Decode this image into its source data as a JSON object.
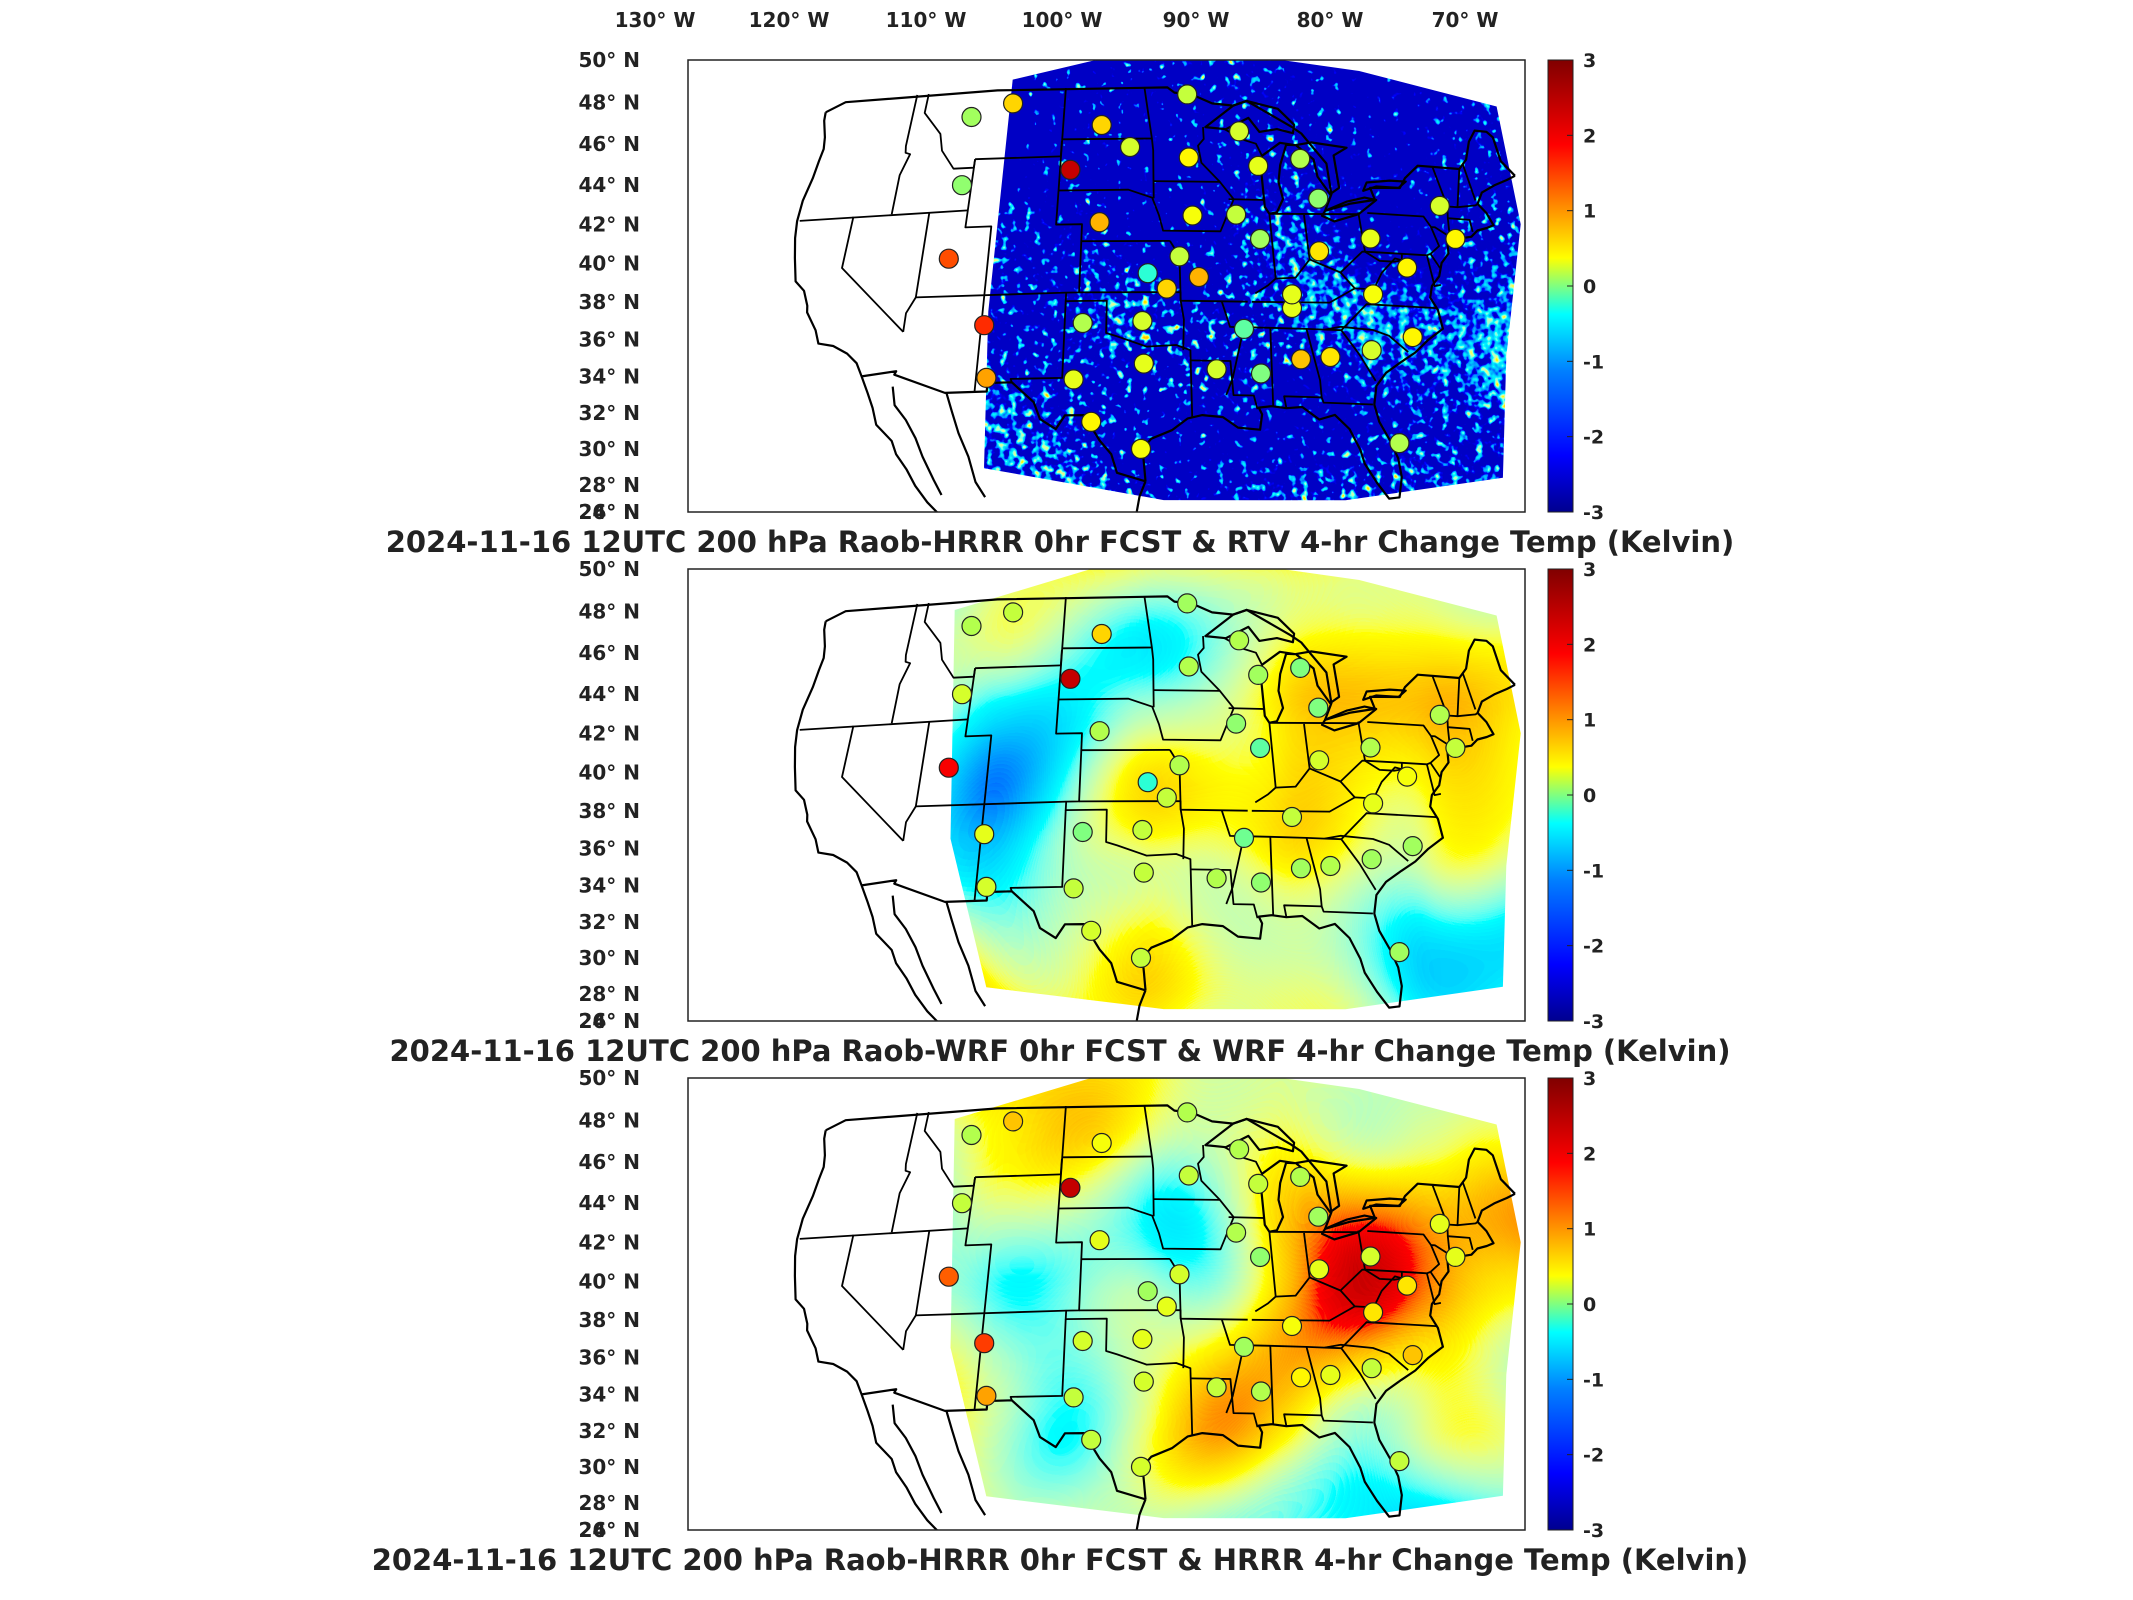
{
  "lon_ticks": [
    "130° W",
    "120° W",
    "110° W",
    "100° W",
    "90° W",
    "80° W",
    "70° W"
  ],
  "lat_ticks": [
    "50° N",
    "48° N",
    "46° N",
    "44° N",
    "42° N",
    "40° N",
    "38° N",
    "36° N",
    "34° N",
    "32° N",
    "30° N",
    "28° N",
    "26° N",
    "24° N"
  ],
  "colorbar": {
    "ticks": [
      "3",
      "2",
      "1",
      "0",
      "-1",
      "-2",
      "-3"
    ],
    "colormap": [
      "#00008f",
      "#0000ff",
      "#0080ff",
      "#00ffff",
      "#80ff80",
      "#ffff00",
      "#ff8000",
      "#ff0000",
      "#800000"
    ]
  },
  "panels": [
    {
      "title": "2024-11-16 12UTC 200 hPa Raob-HRRR 0hr FCST & RTV 4-hr Change Temp (Kelvin)",
      "field_style": "noisy",
      "stations": [
        {
          "lon": -111.9,
          "lat": 47.5,
          "value": 0.2
        },
        {
          "lon": -108.5,
          "lat": 48.2,
          "value": 1.0
        },
        {
          "lon": -111.8,
          "lat": 43.5,
          "value": 0.1
        },
        {
          "lon": -112.0,
          "lat": 39.2,
          "value": 1.8
        },
        {
          "lon": -108.8,
          "lat": 35.2,
          "value": 2.0
        },
        {
          "lon": -108.3,
          "lat": 32.1,
          "value": 1.3
        },
        {
          "lon": -103.2,
          "lat": 44.2,
          "value": 2.6
        },
        {
          "lon": -100.8,
          "lat": 46.8,
          "value": 1.0
        },
        {
          "lon": -98.4,
          "lat": 45.5,
          "value": 0.5
        },
        {
          "lon": -100.7,
          "lat": 41.1,
          "value": 1.2
        },
        {
          "lon": -97.0,
          "lat": 38.1,
          "value": -0.5
        },
        {
          "lon": -97.4,
          "lat": 35.3,
          "value": 0.5
        },
        {
          "lon": -101.7,
          "lat": 35.2,
          "value": 0.3
        },
        {
          "lon": -97.3,
          "lat": 32.8,
          "value": 0.6
        },
        {
          "lon": -102.2,
          "lat": 31.9,
          "value": 0.6
        },
        {
          "lon": -100.9,
          "lat": 29.4,
          "value": 0.8
        },
        {
          "lon": -97.5,
          "lat": 27.8,
          "value": 0.7
        },
        {
          "lon": -94.6,
          "lat": 39.1,
          "value": 0.4
        },
        {
          "lon": -93.6,
          "lat": 44.9,
          "value": 0.8
        },
        {
          "lon": -89.3,
          "lat": 46.5,
          "value": 0.5
        },
        {
          "lon": -90.1,
          "lat": 41.6,
          "value": 0.4
        },
        {
          "lon": -88.4,
          "lat": 40.2,
          "value": 0.2
        },
        {
          "lon": -86.5,
          "lat": 36.2,
          "value": 0.6
        },
        {
          "lon": -90.1,
          "lat": 34.9,
          "value": -0.2
        },
        {
          "lon": -92.2,
          "lat": 32.5,
          "value": 0.5
        },
        {
          "lon": -89.1,
          "lat": 32.3,
          "value": 0.0
        },
        {
          "lon": -86.2,
          "lat": 33.2,
          "value": 1.1
        },
        {
          "lon": -84.1,
          "lat": 33.4,
          "value": 0.9
        },
        {
          "lon": -81.1,
          "lat": 33.9,
          "value": 0.5
        },
        {
          "lon": -78.0,
          "lat": 34.8,
          "value": 0.8
        },
        {
          "lon": -80.4,
          "lat": 37.2,
          "value": 0.7
        },
        {
          "lon": -84.0,
          "lat": 39.6,
          "value": 0.9
        },
        {
          "lon": -83.5,
          "lat": 42.7,
          "value": 0.1
        },
        {
          "lon": -84.5,
          "lat": 45.0,
          "value": 0.3
        },
        {
          "lon": -79.9,
          "lat": 40.5,
          "value": 0.6
        },
        {
          "lon": -77.5,
          "lat": 38.9,
          "value": 0.8
        },
        {
          "lon": -73.9,
          "lat": 42.7,
          "value": 0.5
        },
        {
          "lon": -73.3,
          "lat": 40.8,
          "value": 0.8
        },
        {
          "lon": -80.0,
          "lat": 28.5,
          "value": 0.3
        },
        {
          "lon": -93.5,
          "lat": 41.5,
          "value": 0.7
        },
        {
          "lon": -95.6,
          "lat": 37.2,
          "value": 1.0
        },
        {
          "lon": -93.2,
          "lat": 37.9,
          "value": 1.2
        },
        {
          "lon": -86.4,
          "lat": 37.0,
          "value": 0.6
        },
        {
          "lon": -88.0,
          "lat": 44.5,
          "value": 0.6
        },
        {
          "lon": -93.5,
          "lat": 48.6,
          "value": 0.4
        }
      ]
    },
    {
      "title": "2024-11-16 12UTC 200 hPa Raob-WRF 0hr FCST & WRF 4-hr Change Temp (Kelvin)",
      "field_style": "smooth",
      "stations": [
        {
          "lon": -111.9,
          "lat": 47.5,
          "value": 0.3
        },
        {
          "lon": -108.5,
          "lat": 48.2,
          "value": 0.4
        },
        {
          "lon": -111.8,
          "lat": 43.5,
          "value": 0.5
        },
        {
          "lon": -112.0,
          "lat": 39.2,
          "value": 2.3
        },
        {
          "lon": -108.8,
          "lat": 35.2,
          "value": 0.6
        },
        {
          "lon": -108.3,
          "lat": 32.1,
          "value": 0.5
        },
        {
          "lon": -103.2,
          "lat": 44.2,
          "value": 2.6
        },
        {
          "lon": -100.8,
          "lat": 46.8,
          "value": 1.0
        },
        {
          "lon": -100.7,
          "lat": 41.1,
          "value": 0.3
        },
        {
          "lon": -97.0,
          "lat": 38.1,
          "value": -0.5
        },
        {
          "lon": -97.4,
          "lat": 35.3,
          "value": 0.4
        },
        {
          "lon": -101.7,
          "lat": 35.2,
          "value": 0.0
        },
        {
          "lon": -97.3,
          "lat": 32.8,
          "value": 0.4
        },
        {
          "lon": -102.2,
          "lat": 31.9,
          "value": 0.4
        },
        {
          "lon": -100.9,
          "lat": 29.4,
          "value": 0.5
        },
        {
          "lon": -97.5,
          "lat": 27.8,
          "value": 0.4
        },
        {
          "lon": -94.6,
          "lat": 39.1,
          "value": 0.3
        },
        {
          "lon": -93.6,
          "lat": 44.9,
          "value": 0.3
        },
        {
          "lon": -89.3,
          "lat": 46.5,
          "value": 0.3
        },
        {
          "lon": -90.1,
          "lat": 41.6,
          "value": 0.1
        },
        {
          "lon": -88.4,
          "lat": 40.2,
          "value": -0.2
        },
        {
          "lon": -86.5,
          "lat": 36.2,
          "value": 0.4
        },
        {
          "lon": -90.1,
          "lat": 34.9,
          "value": -0.1
        },
        {
          "lon": -92.2,
          "lat": 32.5,
          "value": 0.3
        },
        {
          "lon": -89.1,
          "lat": 32.3,
          "value": 0.1
        },
        {
          "lon": -86.2,
          "lat": 33.2,
          "value": 0.2
        },
        {
          "lon": -84.1,
          "lat": 33.4,
          "value": 0.3
        },
        {
          "lon": -81.1,
          "lat": 33.9,
          "value": 0.2
        },
        {
          "lon": -78.0,
          "lat": 34.8,
          "value": 0.2
        },
        {
          "lon": -80.4,
          "lat": 37.2,
          "value": 0.6
        },
        {
          "lon": -84.0,
          "lat": 39.6,
          "value": 0.5
        },
        {
          "lon": -83.5,
          "lat": 42.7,
          "value": 0.0
        },
        {
          "lon": -84.5,
          "lat": 45.0,
          "value": 0.0
        },
        {
          "lon": -79.9,
          "lat": 40.5,
          "value": 0.3
        },
        {
          "lon": -77.5,
          "lat": 38.9,
          "value": 0.7
        },
        {
          "lon": -73.9,
          "lat": 42.7,
          "value": 0.3
        },
        {
          "lon": -73.3,
          "lat": 40.8,
          "value": 0.4
        },
        {
          "lon": -80.0,
          "lat": 28.5,
          "value": 0.2
        },
        {
          "lon": -95.6,
          "lat": 37.2,
          "value": 0.4
        },
        {
          "lon": -88.0,
          "lat": 44.5,
          "value": 0.2
        },
        {
          "lon": -93.5,
          "lat": 48.6,
          "value": 0.2
        }
      ]
    },
    {
      "title": "2024-11-16 12UTC 200 hPa Raob-HRRR 0hr FCST & HRRR 4-hr Change Temp (Kelvin)",
      "field_style": "smooth",
      "stations": [
        {
          "lon": -111.9,
          "lat": 47.5,
          "value": 0.3
        },
        {
          "lon": -108.5,
          "lat": 48.2,
          "value": 1.1
        },
        {
          "lon": -111.8,
          "lat": 43.5,
          "value": 0.4
        },
        {
          "lon": -112.0,
          "lat": 39.2,
          "value": 1.7
        },
        {
          "lon": -108.8,
          "lat": 35.2,
          "value": 1.9
        },
        {
          "lon": -108.3,
          "lat": 32.1,
          "value": 1.3
        },
        {
          "lon": -103.2,
          "lat": 44.2,
          "value": 2.6
        },
        {
          "lon": -100.8,
          "lat": 46.8,
          "value": 0.7
        },
        {
          "lon": -100.7,
          "lat": 41.1,
          "value": 0.6
        },
        {
          "lon": -97.0,
          "lat": 38.1,
          "value": 0.2
        },
        {
          "lon": -97.4,
          "lat": 35.3,
          "value": 0.6
        },
        {
          "lon": -101.7,
          "lat": 35.2,
          "value": 0.5
        },
        {
          "lon": -97.3,
          "lat": 32.8,
          "value": 0.5
        },
        {
          "lon": -102.2,
          "lat": 31.9,
          "value": 0.4
        },
        {
          "lon": -100.9,
          "lat": 29.4,
          "value": 0.4
        },
        {
          "lon": -97.5,
          "lat": 27.8,
          "value": 0.5
        },
        {
          "lon": -94.6,
          "lat": 39.1,
          "value": 0.5
        },
        {
          "lon": -93.6,
          "lat": 44.9,
          "value": 0.4
        },
        {
          "lon": -89.3,
          "lat": 46.5,
          "value": 0.3
        },
        {
          "lon": -90.1,
          "lat": 41.6,
          "value": 0.3
        },
        {
          "lon": -88.4,
          "lat": 40.2,
          "value": 0.1
        },
        {
          "lon": -86.5,
          "lat": 36.2,
          "value": 0.7
        },
        {
          "lon": -90.1,
          "lat": 34.9,
          "value": 0.2
        },
        {
          "lon": -92.2,
          "lat": 32.5,
          "value": 0.4
        },
        {
          "lon": -89.1,
          "lat": 32.3,
          "value": 0.3
        },
        {
          "lon": -86.2,
          "lat": 33.2,
          "value": 0.8
        },
        {
          "lon": -84.1,
          "lat": 33.4,
          "value": 0.6
        },
        {
          "lon": -81.1,
          "lat": 33.9,
          "value": 0.4
        },
        {
          "lon": -78.0,
          "lat": 34.8,
          "value": 1.1
        },
        {
          "lon": -80.4,
          "lat": 37.2,
          "value": 0.9
        },
        {
          "lon": -84.0,
          "lat": 39.6,
          "value": 0.6
        },
        {
          "lon": -83.5,
          "lat": 42.7,
          "value": 0.2
        },
        {
          "lon": -84.5,
          "lat": 45.0,
          "value": 0.3
        },
        {
          "lon": -79.9,
          "lat": 40.5,
          "value": 0.5
        },
        {
          "lon": -77.5,
          "lat": 38.9,
          "value": 0.9
        },
        {
          "lon": -73.9,
          "lat": 42.7,
          "value": 0.6
        },
        {
          "lon": -73.3,
          "lat": 40.8,
          "value": 0.6
        },
        {
          "lon": -80.0,
          "lat": 28.5,
          "value": 0.4
        },
        {
          "lon": -95.6,
          "lat": 37.2,
          "value": 0.6
        },
        {
          "lon": -88.0,
          "lat": 44.5,
          "value": 0.4
        },
        {
          "lon": -93.5,
          "lat": 48.6,
          "value": 0.3
        }
      ]
    }
  ]
}
